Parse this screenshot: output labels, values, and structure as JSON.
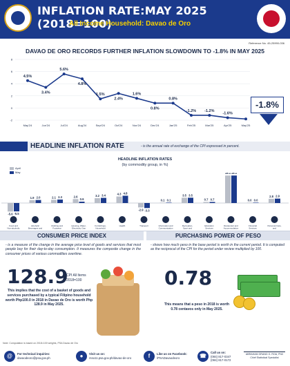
{
  "header": {
    "title": "INFLATION RATE:MAY 2025 (2018=100)",
    "subtitle": "All Income Household: Davao de Oro",
    "reference": "Reference No. 45-25990-036"
  },
  "headline": "DAVAO DE ORO RECORDS FURTHER INFLATION SLOWDOWN TO -1.8% IN MAY 2025",
  "latest_value": "-1.8%",
  "chart_data": [
    {
      "type": "line",
      "categories": [
        "May'24",
        "Jun'24",
        "Jul'24",
        "Aug'24",
        "Sept'24",
        "Oct'24",
        "Nov'24",
        "Dec'24",
        "Jan'25",
        "Feb'25",
        "Mar'25",
        "Apr'25",
        "May'25"
      ],
      "values": [
        4.5,
        3.4,
        5.6,
        4.8,
        1.5,
        2.4,
        1.6,
        0.8,
        0.8,
        -1.2,
        -1.2,
        -1.6,
        -1.8
      ],
      "value_labels": [
        "4.5%",
        "3.4%",
        "5.6%",
        "4.8%",
        "1.5%",
        "2.4%",
        "1.6%",
        "0.8%",
        "0.8%",
        "-1.2%",
        "-1.2%",
        "-1.6%",
        "-1.8%"
      ],
      "y_ticks": [
        "-2",
        "0",
        "2",
        "4",
        "6",
        "8"
      ],
      "ylim": [
        -2,
        8
      ],
      "color": "#1b3a8c"
    },
    {
      "type": "bar",
      "title": "HEADLINE INFLATION RATES",
      "subtitle": "(by commodity group, in %)",
      "categories": [
        "Food and Non-alcoholic Beverages",
        "Alcoholic Beverages and Tobacco",
        "Clothing and Footwear",
        "Housing, Water, Electricity, Gas and Other Fuels",
        "Furnishings, Household Equipment and Routine Household Maintenance",
        "Health",
        "Transport",
        "Information and Communication",
        "Recreation, Sport and Culture",
        "Education Services",
        "Restaurant and Accommodation Services",
        "Financial Services",
        "Personal Care, and Miscellaneous Goods and Services"
      ],
      "series": [
        {
          "name": "April",
          "values": [
            -5.6,
            1.9,
            2.1,
            2.6,
            3.2,
            4.3,
            -2.9,
            0.1,
            3.5,
            0.7,
            18.1,
            0.0,
            2.8
          ],
          "color": "#b9bec8"
        },
        {
          "name": "May",
          "values": [
            -5.5,
            2.0,
            2.3,
            0.9,
            3.4,
            4.8,
            -3.3,
            0.1,
            3.5,
            0.7,
            18.1,
            0.0,
            2.9
          ],
          "color": "#1b3a8c"
        }
      ],
      "value_labels": {
        "April": [
          "-5.6",
          "1.9",
          "2.1",
          "2.6",
          "3.2",
          "4.3",
          "-2.9",
          "0.1",
          "3.5",
          "0.7",
          "18.1",
          "0.0",
          "2.8"
        ],
        "May": [
          "-5.5",
          "2.0",
          "2.3",
          "0.9",
          "3.4",
          "4.8",
          "-3.3",
          "0.1",
          "3.5",
          "0.7",
          "18.1",
          "0.0",
          "2.9"
        ]
      },
      "legend_placement": "top-left"
    }
  ],
  "headline_section": {
    "label": "HEADLINE INFLATION RATE",
    "definition": "- is the annual rate of exchange of the CPI expressed in percent."
  },
  "cpi": {
    "header": "CONSUMER PRICE INDEX",
    "description": "- is a measure of the change in the average price level of goods and services that most people buy for their day-to-day consumption. It measures the composite change in the consumer prices of various commodities overtime.",
    "value": "128.9",
    "caption_1": "CPI All Items",
    "caption_2": "2018=100",
    "note": "This implies that the cost of a basket of goods and services purchased by a typical Filipino household worth Php100.0 in 2018 in Davao de Oro is worth Php 128.9 in May 2025."
  },
  "ppp": {
    "header": "PURCHASING POWER OF PESO",
    "description": "- shows how much peso in the base period is worth in the current period. It is computed as the reciprocal of the CPI for the period under review multiplied by 100.",
    "value": "0.78",
    "note": "This means that a peso in 2018 is worth 0.78 centavos only in May 2025."
  },
  "footnote": "Note: Computation is based on 2018=100 weights, PSA Davao de Oro",
  "footer": {
    "inquiries_title": "For technical inquiries:",
    "inquiries_value": "davaodeoro@psa.gov.ph",
    "web_title": "Visit us on:",
    "web_value": "rsso11.psa.gov.ph/davao-de-oro",
    "fb_title": "Like us on Facebook:",
    "fb_value": "/PSADavaodeoro",
    "call_title": "Call us on:",
    "call_value_1": "(084) 817-0347",
    "call_value_2": "(084) 817-0172",
    "signatory_name": "ABRAHAM GRAND G. ROA, PhD",
    "signatory_title": "Chief Statistical Specialist"
  }
}
